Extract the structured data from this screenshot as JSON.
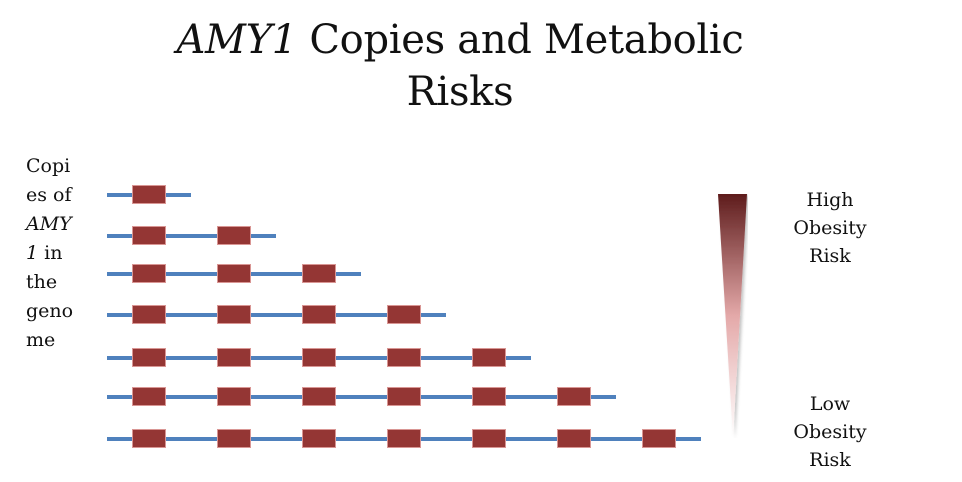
{
  "title": {
    "gene": "AMY1",
    "rest_line1": " Copies and Metabolic",
    "line2": "Risks"
  },
  "ylabel": {
    "lines": [
      "Copi",
      "es of",
      "AMY",
      "1",
      " in",
      "the",
      "geno",
      "me"
    ],
    "full_text": "Copies of AMY1 in the genome"
  },
  "risk_scale": {
    "high": [
      "High",
      "Obesity",
      "Risk"
    ],
    "low": [
      "Low",
      "Obesity",
      "Risk"
    ],
    "gradient_top_color": "#5e1c1c",
    "gradient_mid_color": "#e4a9a9",
    "gradient_bottom_color": "#ffffff"
  },
  "colors": {
    "dna_line": "#4f81bd",
    "copy_block": "#943634"
  },
  "chart_data": {
    "type": "diagram",
    "title": "AMY1 Copies and Metabolic Risks",
    "ylabel": "Copies of AMY1 in the genome",
    "rows": [
      {
        "copies": 1
      },
      {
        "copies": 2
      },
      {
        "copies": 3
      },
      {
        "copies": 4
      },
      {
        "copies": 5
      },
      {
        "copies": 6
      },
      {
        "copies": 7
      }
    ],
    "scale": {
      "top": "High Obesity Risk",
      "bottom": "Low Obesity Risk"
    }
  }
}
